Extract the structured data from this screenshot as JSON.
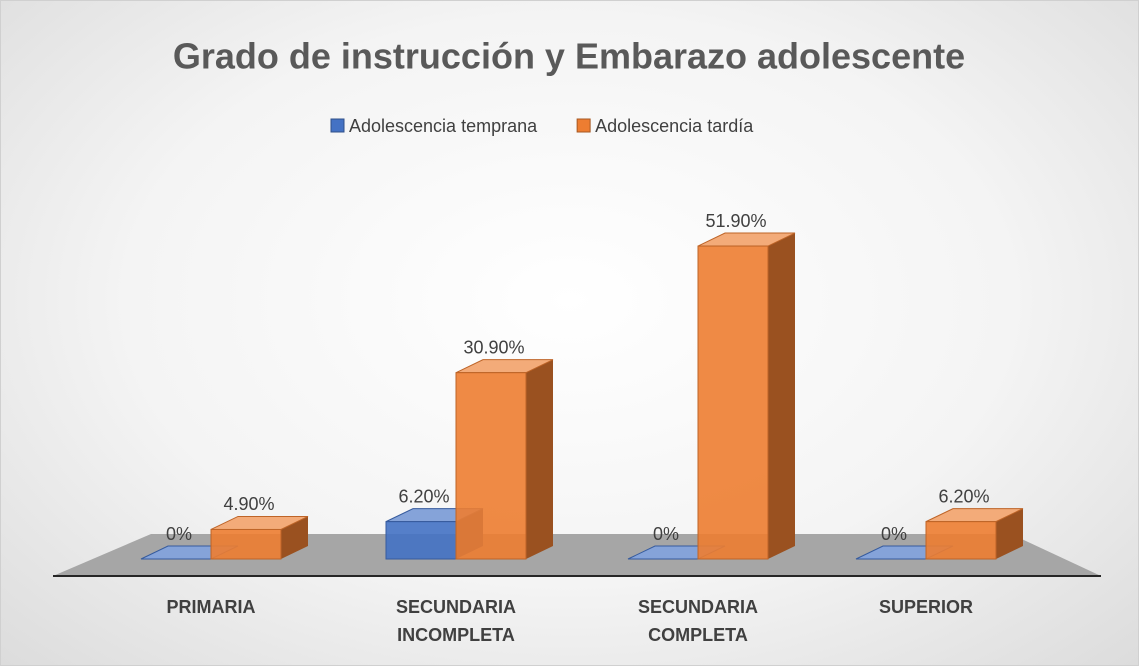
{
  "chart_data": {
    "type": "bar3d",
    "title": "Grado de instrucción y Embarazo adolescente",
    "categories": [
      "PRIMARIA",
      "SECUNDARIA INCOMPLETA",
      "SECUNDARIA COMPLETA",
      "SUPERIOR"
    ],
    "series": [
      {
        "name": "Adolescencia temprana",
        "color": "#4472c4",
        "values": [
          0,
          6.2,
          0,
          0
        ],
        "value_labels": [
          "0%",
          "6.20%",
          "0%",
          "0%"
        ]
      },
      {
        "name": "Adolescencia tardía",
        "color": "#ed7d31",
        "values": [
          4.9,
          30.9,
          51.9,
          6.2
        ],
        "value_labels": [
          "4.90%",
          "30.90%",
          "51.90%",
          "6.20%"
        ]
      }
    ],
    "legend": "top"
  }
}
